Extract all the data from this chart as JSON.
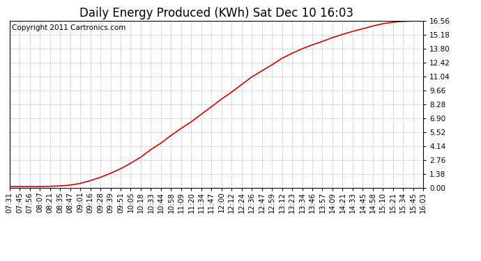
{
  "title": "Daily Energy Produced (KWh) Sat Dec 10 16:03",
  "copyright_text": "Copyright 2011 Cartronics.com",
  "y_ticks": [
    0.0,
    1.38,
    2.76,
    4.14,
    5.52,
    6.9,
    8.28,
    9.66,
    11.04,
    12.42,
    13.8,
    15.18,
    16.56
  ],
  "y_min": 0.0,
  "y_max": 16.56,
  "line_color": "#cc0000",
  "bg_color": "#ffffff",
  "plot_bg_color": "#ffffff",
  "grid_color": "#bbbbbb",
  "x_labels": [
    "07:31",
    "07:45",
    "07:56",
    "08:07",
    "08:21",
    "08:35",
    "08:47",
    "09:01",
    "09:16",
    "09:28",
    "09:39",
    "09:51",
    "10:05",
    "10:18",
    "10:33",
    "10:44",
    "10:58",
    "11:09",
    "11:20",
    "11:34",
    "11:47",
    "12:00",
    "12:12",
    "12:24",
    "12:36",
    "12:47",
    "12:59",
    "13:12",
    "13:23",
    "13:34",
    "13:46",
    "13:57",
    "14:09",
    "14:21",
    "14:33",
    "14:45",
    "14:58",
    "15:10",
    "15:21",
    "15:34",
    "15:45",
    "16:03"
  ],
  "y_values": [
    0.14,
    0.14,
    0.14,
    0.14,
    0.16,
    0.2,
    0.28,
    0.45,
    0.72,
    1.05,
    1.45,
    1.9,
    2.45,
    3.05,
    3.8,
    4.45,
    5.2,
    5.9,
    6.55,
    7.3,
    8.05,
    8.8,
    9.5,
    10.25,
    11.0,
    11.6,
    12.2,
    12.85,
    13.35,
    13.8,
    14.18,
    14.52,
    14.9,
    15.22,
    15.52,
    15.78,
    16.05,
    16.28,
    16.43,
    16.51,
    16.55,
    16.56
  ],
  "title_fontsize": 12,
  "tick_fontsize": 7.5,
  "copyright_fontsize": 7.5
}
